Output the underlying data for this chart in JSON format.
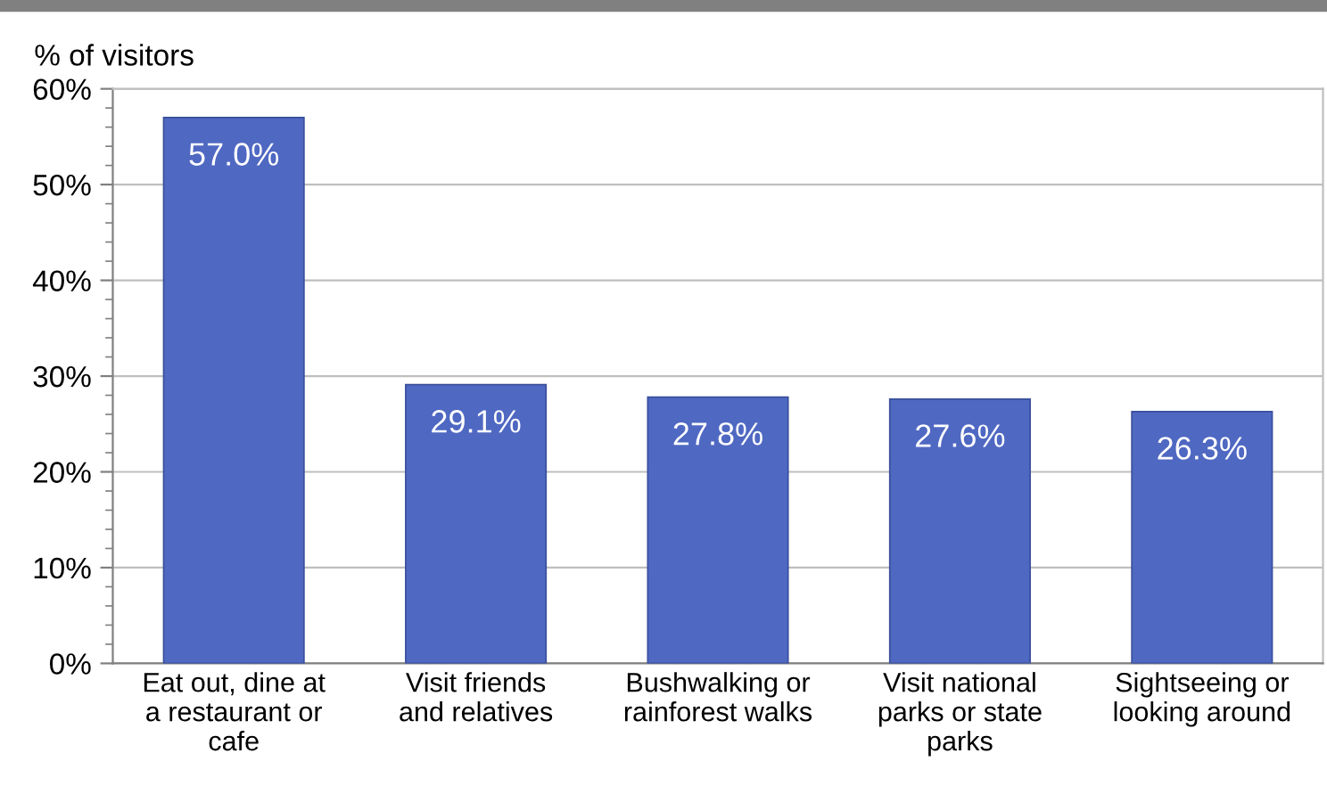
{
  "chart_data": {
    "type": "bar",
    "ylabel": "% of visitors",
    "categories": [
      "Eat out, dine at\na restaurant or\ncafe",
      "Visit friends\nand relatives",
      "Bushwalking or\nrainforest walks",
      "Visit national\nparks or state\nparks",
      "Sightseeing or\nlooking around"
    ],
    "values": [
      57.0,
      29.1,
      27.8,
      27.6,
      26.3
    ],
    "value_labels": [
      "57.0%",
      "29.1%",
      "27.8%",
      "27.6%",
      "26.3%"
    ],
    "color": "#4f68c2",
    "ylim": [
      0,
      60
    ],
    "yticks": [
      {
        "value": 0,
        "label": "0%"
      },
      {
        "value": 10,
        "label": "10%"
      },
      {
        "value": 20,
        "label": "20%"
      },
      {
        "value": 30,
        "label": "30%"
      },
      {
        "value": 40,
        "label": "40%"
      },
      {
        "value": 50,
        "label": "50%"
      },
      {
        "value": 60,
        "label": "60%"
      }
    ],
    "grid": "y",
    "legend": false
  }
}
